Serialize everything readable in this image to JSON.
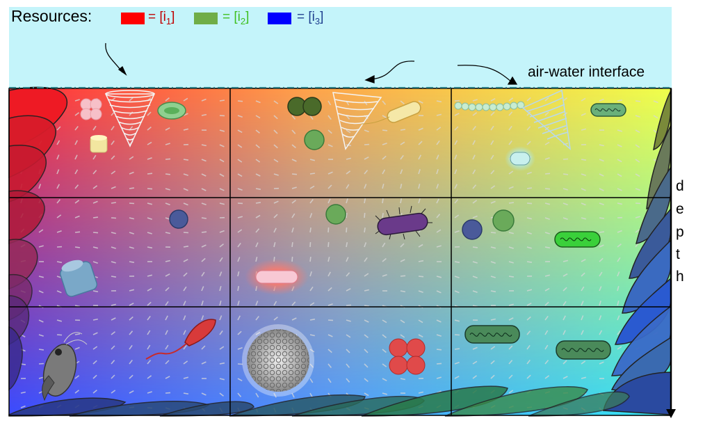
{
  "title": "Resources:",
  "legend": [
    {
      "prefix": "= [i",
      "sub": "1",
      "suffix": "]",
      "color": "#ff0000",
      "text_color": "#c00000"
    },
    {
      "prefix": "= [i",
      "sub": "2",
      "suffix": "]",
      "color": "#70ad47",
      "text_color": "#3fbf1f"
    },
    {
      "prefix": "= [i",
      "sub": "3",
      "suffix": "]",
      "color": "#0000ff",
      "text_color": "#1f3f8f"
    }
  ],
  "interface_label": "air-water interface",
  "depth_label": [
    "d",
    "e",
    "p",
    "t",
    "h"
  ],
  "colors": {
    "air": "#c4f4fa",
    "grid": "#000000",
    "interface_line": "#2e7f86"
  },
  "organism_icons": [
    "tintinnid-lorica-icon",
    "diatom-disc-icon",
    "diatom-cylinder-icon",
    "coccosphere-icon",
    "rod-bacterium-icon",
    "spirillum-icon",
    "copepod-icon",
    "cocci-cluster-icon",
    "filament-chain-icon",
    "cyanobacterium-icon"
  ]
}
